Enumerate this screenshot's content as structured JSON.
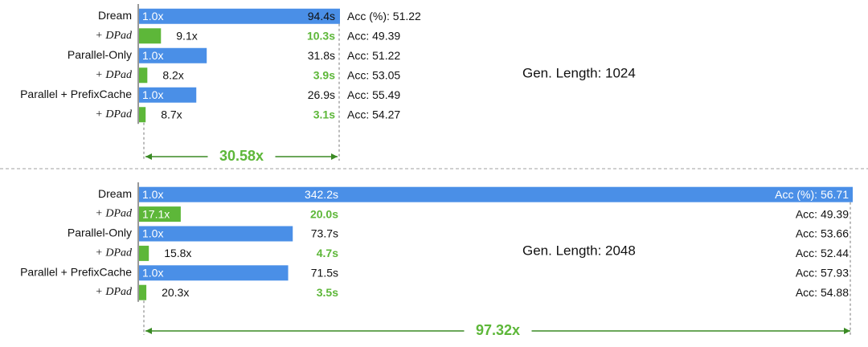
{
  "chart_data": [
    {
      "type": "bar",
      "orientation": "horizontal",
      "annotation": "Gen. Length: 1024",
      "speedup_label": "30.58x",
      "x_max": 94.4,
      "rows": [
        {
          "label": "Dream",
          "label_style": "plain",
          "time": 94.4,
          "time_text": "94.4s",
          "speedup_text": "1.0x",
          "acc_text": "Acc (%): 51.22",
          "color": "#4a8fe7",
          "time_highlight": false
        },
        {
          "label": "+ DPad",
          "label_style": "italic",
          "time": 10.3,
          "time_text": "10.3s",
          "speedup_text": "9.1x",
          "acc_text": "Acc: 49.39",
          "color": "#5db739",
          "time_highlight": true
        },
        {
          "label": "Parallel-Only",
          "label_style": "plain",
          "time": 31.8,
          "time_text": "31.8s",
          "speedup_text": "1.0x",
          "acc_text": "Acc: 51.22",
          "color": "#4a8fe7",
          "time_highlight": false
        },
        {
          "label": "+ DPad",
          "label_style": "italic",
          "time": 3.9,
          "time_text": "3.9s",
          "speedup_text": "8.2x",
          "acc_text": "Acc: 53.05",
          "color": "#5db739",
          "time_highlight": true
        },
        {
          "label": "Parallel + PrefixCache",
          "label_style": "plain",
          "time": 26.9,
          "time_text": "26.9s",
          "speedup_text": "1.0x",
          "acc_text": "Acc: 55.49",
          "color": "#4a8fe7",
          "time_highlight": false
        },
        {
          "label": "+ DPad",
          "label_style": "italic",
          "time": 3.1,
          "time_text": "3.1s",
          "speedup_text": "8.7x",
          "acc_text": "Acc: 54.27",
          "color": "#5db739",
          "time_highlight": true
        }
      ]
    },
    {
      "type": "bar",
      "orientation": "horizontal",
      "annotation": "Gen. Length: 2048",
      "speedup_label": "97.32x",
      "x_max": 342.2,
      "rows": [
        {
          "label": "Dream",
          "label_style": "plain",
          "time": 342.2,
          "time_text": "342.2s",
          "speedup_text": "1.0x",
          "acc_text": "Acc  (%): 56.71",
          "color": "#4a8fe7",
          "time_highlight": false
        },
        {
          "label": "+ DPad",
          "label_style": "italic",
          "time": 20.0,
          "time_text": "20.0s",
          "speedup_text": "17.1x",
          "acc_text": "Acc: 49.39",
          "color": "#5db739",
          "time_highlight": true
        },
        {
          "label": "Parallel-Only",
          "label_style": "plain",
          "time": 73.7,
          "time_text": "73.7s",
          "speedup_text": "1.0x",
          "acc_text": "Acc: 53.66",
          "color": "#4a8fe7",
          "time_highlight": false
        },
        {
          "label": "+ DPad",
          "label_style": "italic",
          "time": 4.7,
          "time_text": "4.7s",
          "speedup_text": "15.8x",
          "acc_text": "Acc: 52.44",
          "color": "#5db739",
          "time_highlight": true
        },
        {
          "label": "Parallel + PrefixCache",
          "label_style": "plain",
          "time": 71.5,
          "time_text": "71.5s",
          "speedup_text": "1.0x",
          "acc_text": "Acc: 57.93",
          "color": "#4a8fe7",
          "time_highlight": false
        },
        {
          "label": "+ DPad",
          "label_style": "italic",
          "time": 3.5,
          "time_text": "3.5s",
          "speedup_text": "20.3x",
          "acc_text": "Acc: 54.88",
          "color": "#5db739",
          "time_highlight": true
        }
      ]
    }
  ],
  "colors": {
    "baseline": "#4a8fe7",
    "dpad": "#5db739",
    "speedup_text": "#5db739",
    "arrow": "#3a8a24",
    "text": "#111111",
    "divider": "#b5b5b5"
  }
}
